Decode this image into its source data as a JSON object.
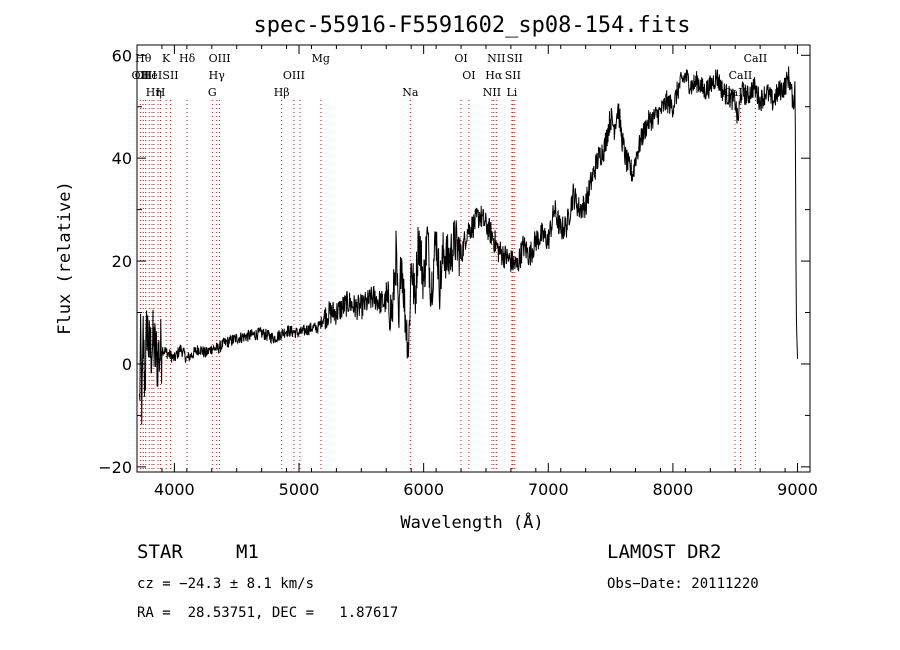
{
  "chart_data": {
    "type": "line",
    "title": "spec-55916-F5591602_sp08-154.fits",
    "xlabel": "Wavelength (Å)",
    "ylabel": "Flux (relative)",
    "xlim": [
      3700,
      9100
    ],
    "ylim": [
      -21,
      62
    ],
    "xticks": [
      4000,
      5000,
      6000,
      7000,
      8000,
      9000
    ],
    "yticks": [
      -20,
      0,
      20,
      40,
      60
    ],
    "grid": false,
    "line_color": "#000000",
    "marker_color": "#ff0000",
    "series": [
      {
        "x": [
          3720,
          3730,
          3740,
          3750,
          3760,
          3770,
          3780,
          3800,
          3830,
          3860,
          3900,
          3950,
          4000,
          4050,
          4100,
          4150,
          4200,
          4250,
          4300,
          4350,
          4400,
          4500,
          4600,
          4700,
          4800,
          4900,
          5000,
          5100,
          5150,
          5200,
          5250,
          5300,
          5350,
          5400,
          5450,
          5500,
          5550,
          5600,
          5650,
          5700,
          5750,
          5780,
          5800,
          5820,
          5850,
          5880,
          5900,
          5930,
          5960,
          6000,
          6030,
          6060,
          6100,
          6130,
          6160,
          6200,
          6250,
          6300,
          6350,
          6400,
          6450,
          6500,
          6550,
          6600,
          6650,
          6700,
          6750,
          6800,
          6850,
          6900,
          6950,
          7000,
          7050,
          7100,
          7150,
          7200,
          7250,
          7300,
          7350,
          7400,
          7450,
          7500,
          7530,
          7560,
          7590,
          7620,
          7650,
          7680,
          7700,
          7750,
          7800,
          7850,
          7900,
          7950,
          8000,
          8050,
          8100,
          8150,
          8200,
          8250,
          8300,
          8350,
          8400,
          8450,
          8500,
          8520,
          8550,
          8600,
          8650,
          8700,
          8750,
          8800,
          8850,
          8900,
          8930,
          8950,
          8970,
          8980,
          8990,
          9000
        ],
        "y": [
          -8,
          4,
          -10,
          6,
          -3,
          0,
          8,
          2,
          4,
          1,
          3,
          2,
          1,
          3,
          1,
          2,
          3,
          2,
          3,
          3,
          4,
          5,
          5.5,
          6,
          5,
          6.5,
          6,
          7,
          7,
          9,
          10,
          10,
          11,
          12,
          11,
          11,
          12,
          13,
          12,
          12,
          10,
          22,
          5,
          22,
          10,
          3,
          20,
          12,
          25,
          16,
          25,
          14,
          25,
          15,
          22,
          20,
          24,
          21,
          26,
          27,
          29,
          27,
          25,
          22,
          21,
          20,
          19,
          23,
          21,
          24,
          25,
          24,
          30,
          26,
          27,
          33,
          30,
          31,
          36,
          40,
          42,
          48,
          46,
          50,
          44,
          40,
          38,
          37,
          40,
          44,
          47,
          48,
          49,
          51,
          50,
          54,
          56,
          54,
          55,
          53,
          54,
          56,
          53,
          52,
          51,
          47,
          53,
          52,
          54,
          51,
          53,
          51,
          53,
          54,
          56,
          53,
          50,
          55,
          10,
          1
        ]
      }
    ],
    "lines": [
      {
        "w": 3727,
        "row": 1,
        "label": "OII"
      },
      {
        "w": 3750,
        "row": 0,
        "label": "Hθ"
      },
      {
        "w": 3770,
        "row": 1,
        "label": "OIII"
      },
      {
        "w": 3798,
        "row": 0,
        "label": ""
      },
      {
        "w": 3820,
        "row": 1,
        "label": "HeI"
      },
      {
        "w": 3835,
        "row": 2,
        "label": "Hη"
      },
      {
        "w": 3869,
        "row": 1,
        "label": ""
      },
      {
        "w": 3889,
        "row": 2,
        "label": "H"
      },
      {
        "w": 3934,
        "row": 0,
        "label": "K"
      },
      {
        "w": 3969,
        "row": 1,
        "label": "SII"
      },
      {
        "w": 4102,
        "row": 0,
        "label": "Hδ"
      },
      {
        "w": 4304,
        "row": 2,
        "label": "G"
      },
      {
        "w": 4340,
        "row": 1,
        "label": "Hγ"
      },
      {
        "w": 4363,
        "row": 0,
        "label": "OIII"
      },
      {
        "w": 4861,
        "row": 2,
        "label": "Hβ"
      },
      {
        "w": 4959,
        "row": 1,
        "label": "OIII"
      },
      {
        "w": 5007,
        "row": 1,
        "label": ""
      },
      {
        "w": 5175,
        "row": 0,
        "label": "Mg"
      },
      {
        "w": 5893,
        "row": 2,
        "label": "Na"
      },
      {
        "w": 6300,
        "row": 0,
        "label": "OI"
      },
      {
        "w": 6363,
        "row": 1,
        "label": "OI"
      },
      {
        "w": 6548,
        "row": 2,
        "label": "NII"
      },
      {
        "w": 6563,
        "row": 1,
        "label": "Hα"
      },
      {
        "w": 6583,
        "row": 0,
        "label": "NII"
      },
      {
        "w": 6708,
        "row": 2,
        "label": "Li"
      },
      {
        "w": 6716,
        "row": 1,
        "label": "SII"
      },
      {
        "w": 6731,
        "row": 0,
        "label": "SII"
      },
      {
        "w": 8498,
        "row": 2,
        "label": "CaII"
      },
      {
        "w": 8542,
        "row": 1,
        "label": "CaII"
      },
      {
        "w": 8662,
        "row": 0,
        "label": "CaII"
      }
    ]
  },
  "info": {
    "object_class": "STAR",
    "subclass": "M1",
    "survey": "LAMOST DR2",
    "cz": "cz = −24.3 ± 8.1 km/s",
    "obs_date": "Obs−Date: 20111220",
    "radec": "RA =  28.53751, DEC =   1.87617"
  }
}
